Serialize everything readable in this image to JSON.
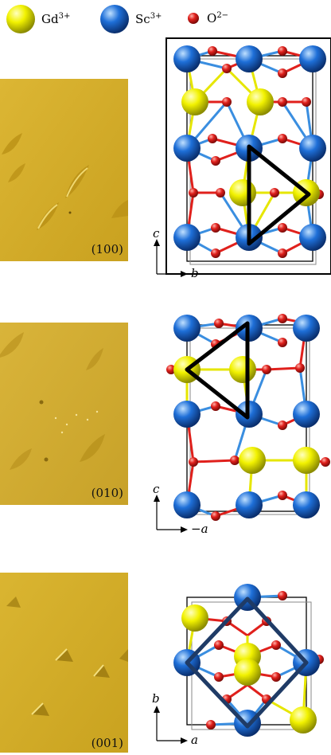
{
  "legend": [
    {
      "ion": "Gd",
      "charge": "3+",
      "color": "#f2f200"
    },
    {
      "ion": "Sc",
      "charge": "3+",
      "color": "#1e6fd8"
    },
    {
      "ion": "O",
      "charge": "2−",
      "color": "#e0201c"
    }
  ],
  "panels": [
    {
      "face": "(100)",
      "axis_h": "b",
      "axis_v": "c",
      "outline_shape": "triangle-right",
      "outline_color": "#000000"
    },
    {
      "face": "(010)",
      "axis_h": "−a",
      "axis_v": "c",
      "outline_shape": "triangle-left",
      "outline_color": "#000000"
    },
    {
      "face": "(001)",
      "axis_h": "a",
      "axis_v": "b",
      "outline_shape": "diamond",
      "outline_color": "#1f3b66"
    }
  ],
  "colors": {
    "micrograph": "#d4ac2a",
    "gd": "#f2f200",
    "sc": "#1e6fd8",
    "o": "#e0201c"
  }
}
